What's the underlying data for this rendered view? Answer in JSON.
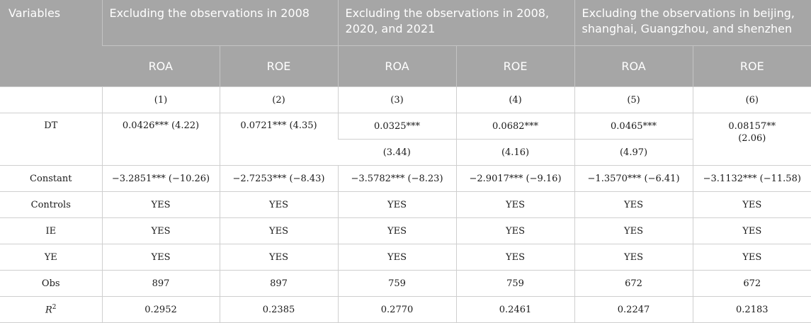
{
  "header": {
    "variables": "Variables",
    "groups": [
      "Excluding the observations in 2008",
      "Excluding the observations in 2008, 2020, and 2021",
      "Excluding the observations in beijing, shanghai, Guangzhou, and shenzhen"
    ],
    "sub": [
      "ROA",
      "ROE",
      "ROA",
      "ROE",
      "ROA",
      "ROE"
    ]
  },
  "rows": {
    "numbering": [
      "(1)",
      "(2)",
      "(3)",
      "(4)",
      "(5)",
      "(6)"
    ],
    "dt": {
      "label": "DT",
      "c1": "0.0426*** (4.22)",
      "c2": "0.0721*** (4.35)",
      "c3_top": "0.0325***",
      "c3_bottom": "(3.44)",
      "c4_top": "0.0682***",
      "c4_bottom": "(4.16)",
      "c5_top": "0.0465***",
      "c5_bottom": "(4.97)",
      "c6_line1": "0.08157**",
      "c6_line2": "(2.06)"
    },
    "constant": {
      "label": "Constant",
      "values": [
        "−3.2851*** (−10.26)",
        "−2.7253*** (−8.43)",
        "−3.5782*** (−8.23)",
        "−2.9017*** (−9.16)",
        "−1.3570*** (−6.41)",
        "−3.1132*** (−11.58)"
      ]
    },
    "controls": {
      "label": "Controls",
      "values": [
        "YES",
        "YES",
        "YES",
        "YES",
        "YES",
        "YES"
      ]
    },
    "ie": {
      "label": "IE",
      "values": [
        "YES",
        "YES",
        "YES",
        "YES",
        "YES",
        "YES"
      ]
    },
    "ye": {
      "label": "YE",
      "values": [
        "YES",
        "YES",
        "YES",
        "YES",
        "YES",
        "YES"
      ]
    },
    "obs": {
      "label": "Obs",
      "values": [
        "897",
        "897",
        "759",
        "759",
        "672",
        "672"
      ]
    },
    "r2": {
      "label_base": "R",
      "label_sup": "2",
      "values": [
        "0.2952",
        "0.2385",
        "0.2770",
        "0.2461",
        "0.2247",
        "0.2183"
      ]
    }
  },
  "colors": {
    "header_bg": "#a6a6a6",
    "header_text": "#ffffff",
    "grid": "#cfcfcf"
  }
}
